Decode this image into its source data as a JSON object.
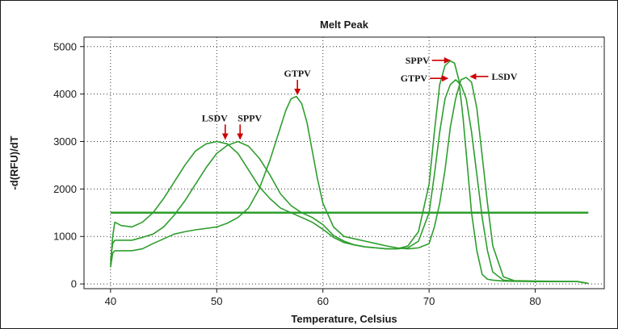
{
  "chart_data": {
    "type": "line",
    "title": "Melt Peak",
    "xlabel": "Temperature, Celsius",
    "ylabel": "-d(RFU)/dT",
    "xlim": [
      37.5,
      86.5
    ],
    "ylim": [
      -100,
      5200
    ],
    "xticks": [
      40,
      50,
      60,
      70,
      80
    ],
    "yticks": [
      0,
      1000,
      2000,
      3000,
      4000,
      5000
    ],
    "grid": true,
    "line_color": "#2e9e2e",
    "arrow_color": "#cc0000",
    "threshold": {
      "value": 1500,
      "x_range": [
        40,
        85
      ]
    },
    "series": [
      {
        "x": [
          40,
          40.2,
          40.4,
          41,
          42,
          43,
          44,
          45,
          46,
          47,
          48,
          49,
          50,
          51,
          52,
          53,
          54,
          55,
          56,
          57,
          58,
          59,
          60,
          61,
          62,
          63,
          64,
          65,
          66,
          67,
          68,
          69,
          70,
          70.5,
          71,
          71.5,
          72,
          72.4,
          72.8,
          73.2,
          73.6,
          74,
          74.5,
          75,
          75.5,
          76,
          77,
          78,
          80,
          82,
          84,
          85
        ],
        "y": [
          400,
          1000,
          1300,
          1230,
          1200,
          1300,
          1500,
          1800,
          2150,
          2500,
          2800,
          2950,
          3000,
          2950,
          2750,
          2400,
          2050,
          1800,
          1600,
          1500,
          1400,
          1300,
          1150,
          980,
          870,
          820,
          780,
          760,
          740,
          740,
          800,
          1100,
          2100,
          3200,
          4200,
          4600,
          4700,
          4650,
          4300,
          3500,
          2500,
          1500,
          700,
          200,
          100,
          80,
          60,
          55,
          50,
          50,
          50,
          10
        ]
      },
      {
        "x": [
          40,
          40.2,
          40.4,
          41,
          42,
          43,
          44,
          45,
          46,
          47,
          48,
          49,
          50,
          51,
          52,
          53,
          54,
          55,
          56,
          57,
          58,
          59,
          60,
          61,
          62,
          63,
          64,
          65,
          66,
          67,
          68,
          69,
          70,
          70.5,
          71,
          71.5,
          72,
          72.5,
          73,
          73.5,
          74,
          74.5,
          75,
          75.5,
          76,
          77,
          78,
          80,
          82,
          84,
          85
        ],
        "y": [
          500,
          850,
          920,
          920,
          920,
          980,
          1050,
          1200,
          1450,
          1750,
          2100,
          2450,
          2750,
          2920,
          3000,
          2900,
          2650,
          2300,
          1900,
          1650,
          1500,
          1400,
          1250,
          1020,
          900,
          820,
          780,
          760,
          740,
          740,
          760,
          900,
          1500,
          2300,
          3200,
          3900,
          4200,
          4300,
          4200,
          3900,
          3200,
          2300,
          1400,
          700,
          250,
          80,
          60,
          55,
          50,
          50,
          10
        ]
      },
      {
        "x": [
          40,
          40.2,
          40.4,
          41,
          42,
          43,
          44,
          45,
          46,
          47,
          48,
          49,
          50,
          51,
          52,
          53,
          54,
          55,
          56,
          56.5,
          57,
          57.5,
          58,
          58.5,
          59,
          59.5,
          60,
          61,
          62,
          63,
          64,
          65,
          66,
          67,
          68,
          69,
          70,
          70.5,
          71,
          71.5,
          72,
          72.5,
          73,
          73.5,
          74,
          74.5,
          75,
          75.5,
          76,
          77,
          78,
          80,
          82,
          84,
          85
        ],
        "y": [
          350,
          650,
          700,
          700,
          700,
          740,
          850,
          950,
          1050,
          1100,
          1140,
          1170,
          1200,
          1280,
          1400,
          1600,
          2000,
          2600,
          3300,
          3650,
          3900,
          3950,
          3800,
          3400,
          2800,
          2200,
          1700,
          1200,
          1000,
          950,
          900,
          850,
          800,
          760,
          740,
          760,
          850,
          1200,
          1700,
          2400,
          3300,
          3900,
          4300,
          4350,
          4250,
          3700,
          2700,
          1700,
          800,
          150,
          70,
          60,
          55,
          50,
          10
        ]
      }
    ],
    "annotations": [
      {
        "text": "LSDV",
        "x": 50.8,
        "y": 3020,
        "arrow": "down",
        "label_side": "left"
      },
      {
        "text": "SPPV",
        "x": 52.2,
        "y": 3020,
        "arrow": "down",
        "label_side": "right"
      },
      {
        "text": "GTPV",
        "x": 57.6,
        "y": 3960,
        "arrow": "down",
        "label_side": "center"
      },
      {
        "text": "SPPV",
        "x": 72.1,
        "y": 4710,
        "arrow": "right",
        "label_side": "left"
      },
      {
        "text": "GTPV",
        "x": 71.9,
        "y": 4330,
        "arrow": "right",
        "label_side": "left"
      },
      {
        "text": "LSDV",
        "x": 73.6,
        "y": 4370,
        "arrow": "left",
        "label_side": "right"
      }
    ]
  }
}
